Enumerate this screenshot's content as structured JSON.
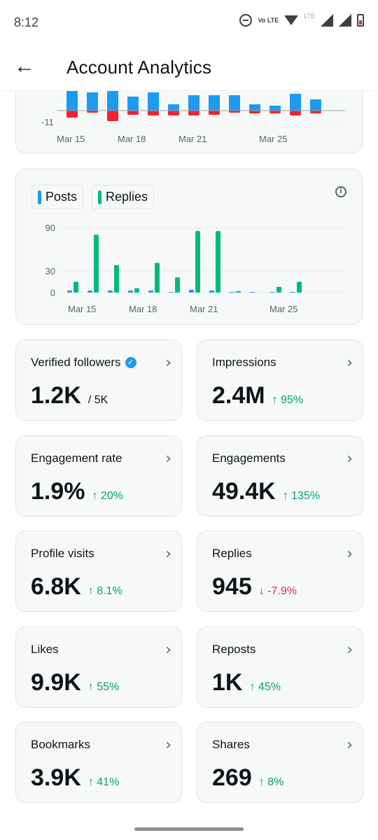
{
  "status_bar": {
    "time": "8:12",
    "icons": [
      "dnd-icon",
      "volte-icon",
      "wifi-icon",
      "lte-icon",
      "signal-icon",
      "signal-icon",
      "battery-icon"
    ],
    "volte_text": "Vo LTE",
    "lte_text": "LTE"
  },
  "header": {
    "back_icon": "arrow-left-icon",
    "title": "Account Analytics"
  },
  "colors": {
    "posts": "#1d9bf0",
    "replies": "#00ba7c",
    "negative": "#f4212e",
    "up": "#00a36c",
    "down": "#e0245e"
  },
  "chart_data": [
    {
      "type": "bar",
      "description_scope": "partially scrolled chart (top cropped)",
      "x_tick_labels": [
        "Mar 15",
        "Mar 18",
        "Mar 21",
        "Mar 25"
      ],
      "y_tick_labels": [
        "-11"
      ],
      "series": [
        {
          "name": "positive",
          "values": [
            28,
            26,
            28,
            20,
            26,
            9,
            22,
            22,
            22,
            9,
            7,
            24,
            16
          ]
        },
        {
          "name": "negative",
          "values": [
            -10,
            -3,
            -15,
            -6,
            -7,
            -7,
            -7,
            -6,
            -3,
            -4,
            -4,
            -7,
            -4
          ]
        }
      ]
    },
    {
      "type": "bar",
      "x_tick_labels": [
        "Mar 15",
        "Mar 18",
        "Mar 21",
        "Mar 25"
      ],
      "y_tick_labels": [
        "0",
        "30",
        "90"
      ],
      "ylim": [
        0,
        100
      ],
      "legend": [
        "Posts",
        "Replies"
      ],
      "series": [
        {
          "name": "Posts",
          "values": [
            1,
            2,
            2,
            1,
            2,
            0,
            4,
            2,
            0,
            0,
            0,
            0
          ]
        },
        {
          "name": "Replies",
          "values": [
            15,
            80,
            38,
            6,
            41,
            21,
            85,
            85,
            2,
            0,
            8,
            15
          ]
        }
      ]
    }
  ],
  "stats": [
    {
      "label": "Verified followers",
      "value": "1.2K",
      "sub": "/ 5K",
      "delta": "",
      "dir": "",
      "verified": true
    },
    {
      "label": "Impressions",
      "value": "2.4M",
      "sub": "",
      "delta": "↑ 95%",
      "dir": "up"
    },
    {
      "label": "Engagement rate",
      "value": "1.9%",
      "sub": "",
      "delta": "↑ 20%",
      "dir": "up"
    },
    {
      "label": "Engagements",
      "value": "49.4K",
      "sub": "",
      "delta": "↑ 135%",
      "dir": "up"
    },
    {
      "label": "Profile visits",
      "value": "6.8K",
      "sub": "",
      "delta": "↑ 8.1%",
      "dir": "up"
    },
    {
      "label": "Replies",
      "value": "945",
      "sub": "",
      "delta": "↓ -7.9%",
      "dir": "down"
    },
    {
      "label": "Likes",
      "value": "9.9K",
      "sub": "",
      "delta": "↑ 55%",
      "dir": "up"
    },
    {
      "label": "Reposts",
      "value": "1K",
      "sub": "",
      "delta": "↑ 45%",
      "dir": "up"
    },
    {
      "label": "Bookmarks",
      "value": "3.9K",
      "sub": "",
      "delta": "↑ 41%",
      "dir": "up"
    },
    {
      "label": "Shares",
      "value": "269",
      "sub": "",
      "delta": "↑ 8%",
      "dir": "up"
    }
  ]
}
